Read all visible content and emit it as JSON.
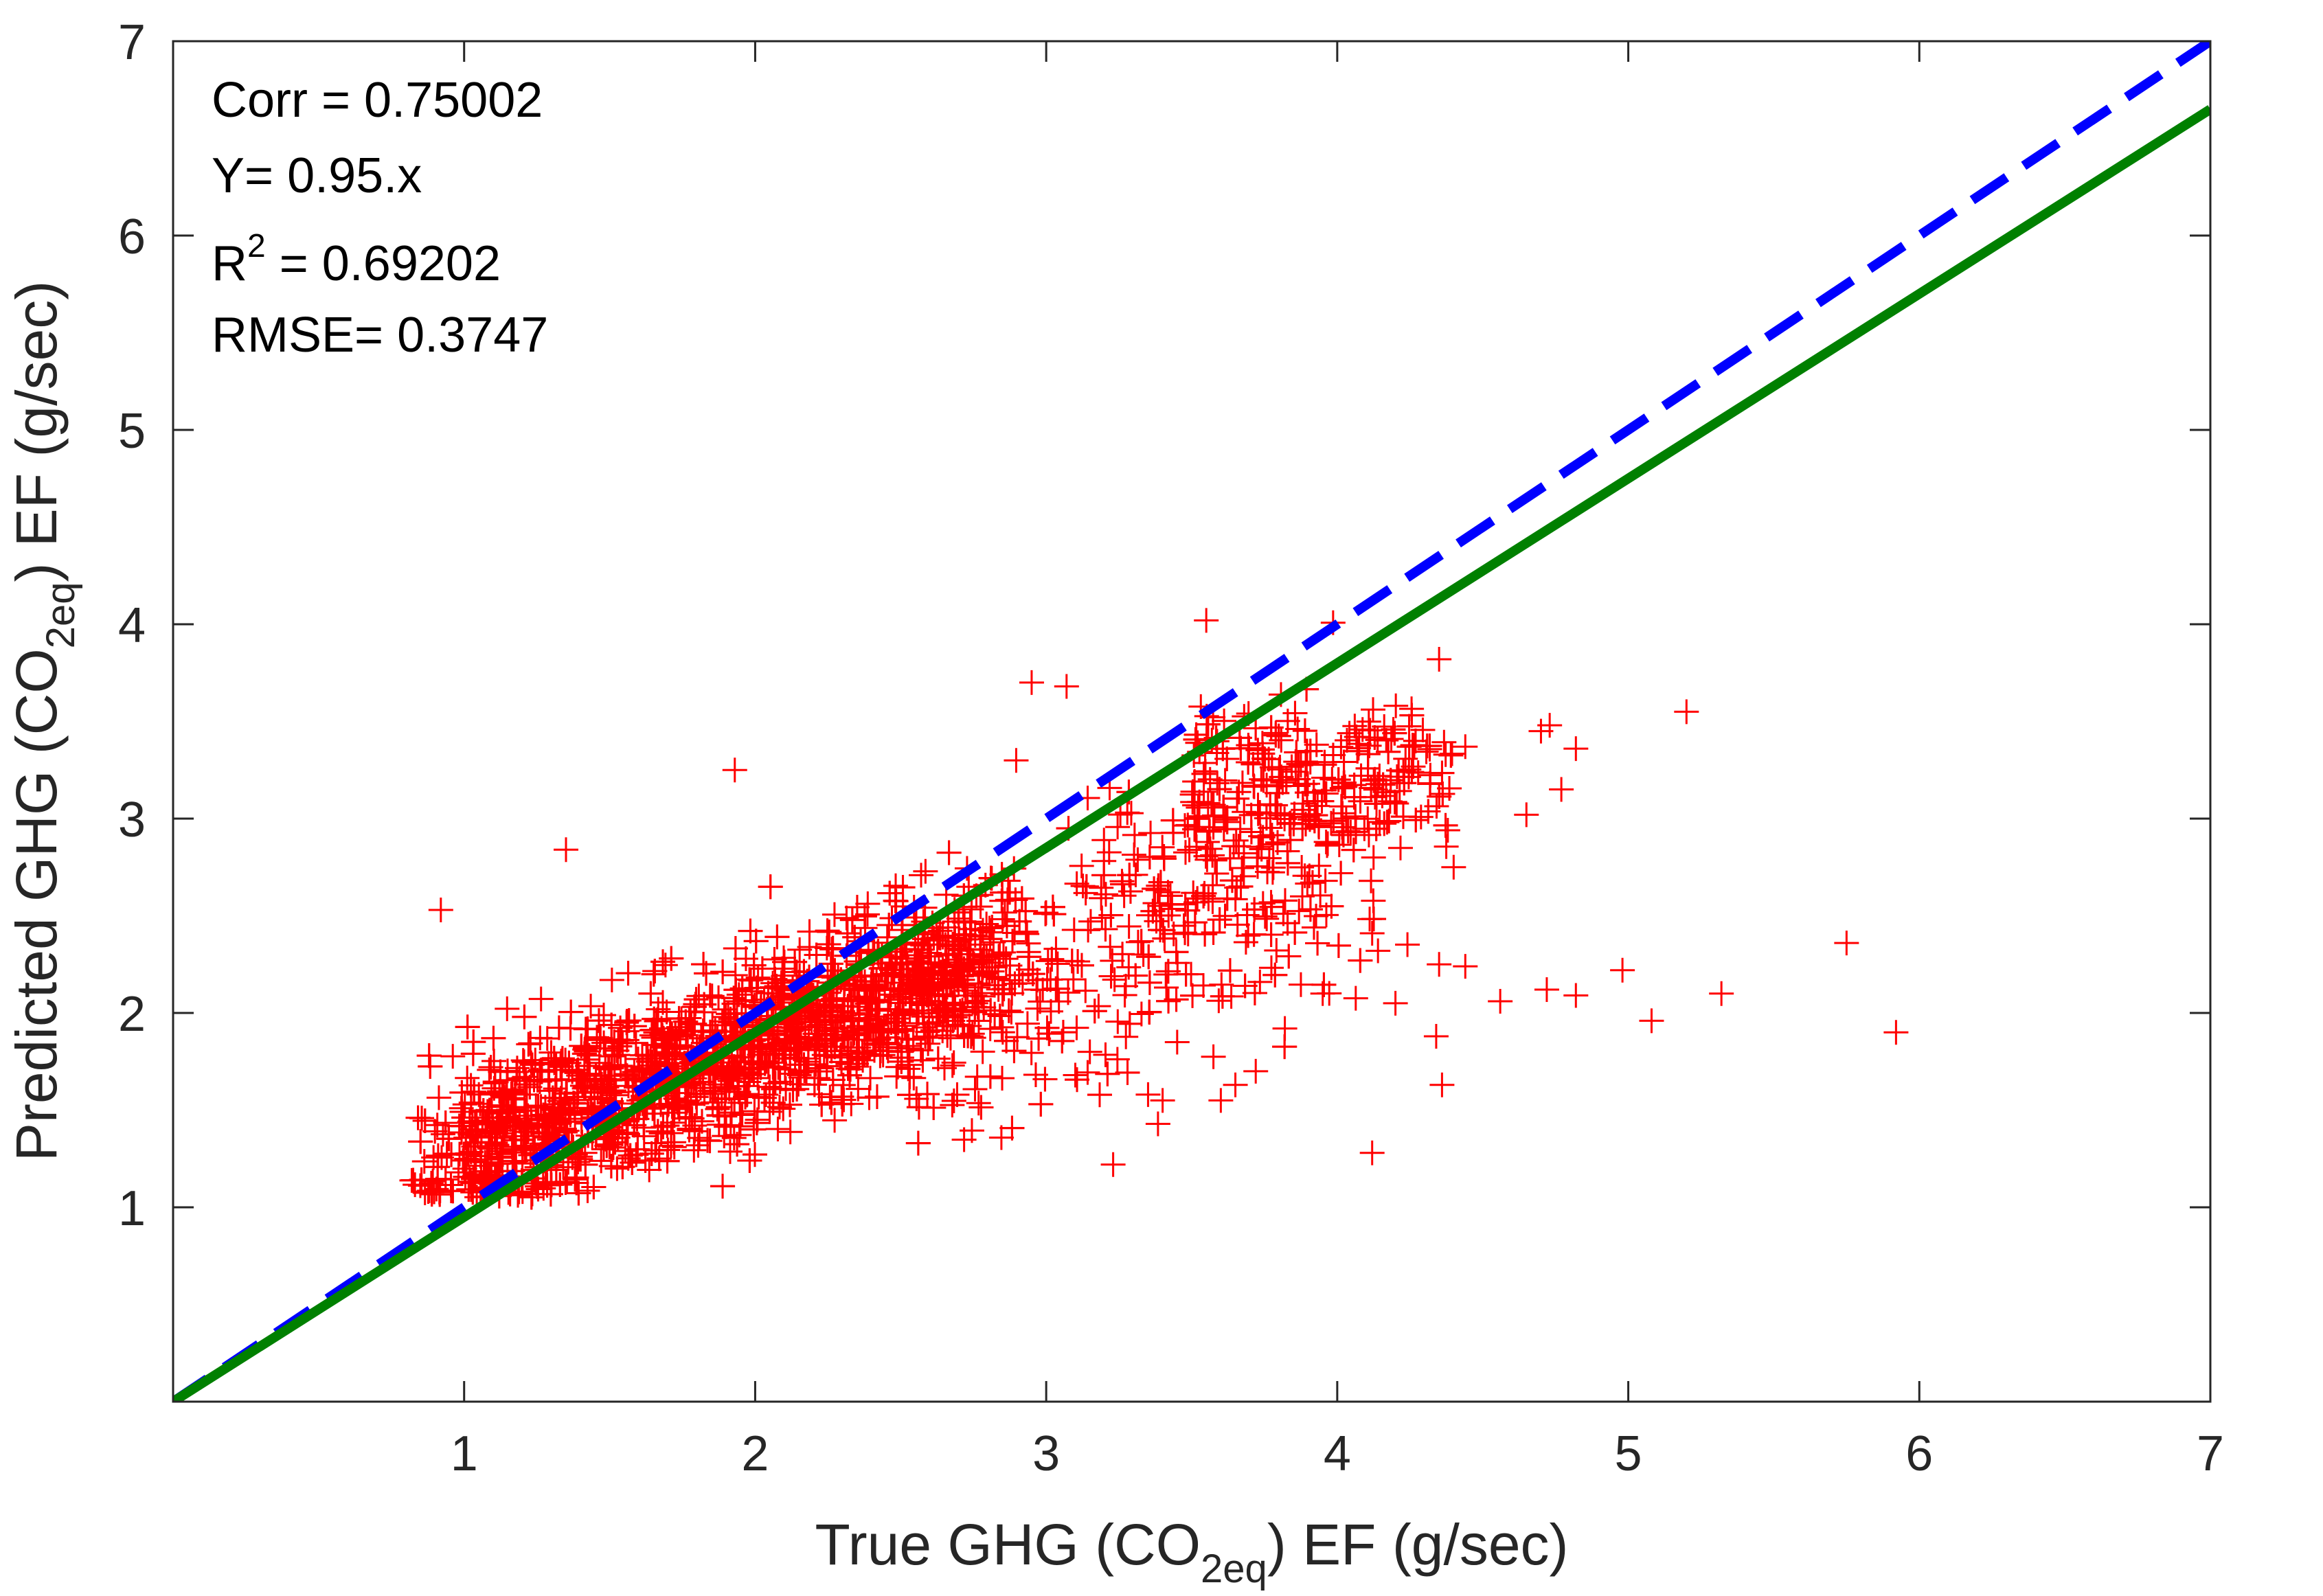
{
  "chart_data": {
    "type": "scatter",
    "xlim": [
      0,
      7
    ],
    "ylim": [
      0,
      7
    ],
    "x_ticks": [
      1,
      2,
      3,
      4,
      5,
      6,
      7
    ],
    "y_ticks": [
      1,
      2,
      3,
      4,
      5,
      6,
      7
    ],
    "xlabel": {
      "before": "True GHG (CO",
      "sub": "2eq",
      "after": ") EF (g/sec)"
    },
    "ylabel": {
      "before": "Predicted GHG (CO",
      "sub": "2eq",
      "after": ") EF (g/sec)"
    },
    "annotations": {
      "corr": "Corr = 0.75002",
      "fit": "Y= 0.95.x",
      "r2_prefix": "R",
      "r2_sup": "2",
      "r2_value": " = 0.69202",
      "rmse": "RMSE= 0.3747"
    },
    "grid": false,
    "box": true,
    "series": [
      {
        "kind": "points",
        "marker": "+",
        "color": "#ff0000",
        "approx_count": 3400,
        "core_trend_slope": 0.95,
        "core_x_range": [
          0.8,
          3.0
        ],
        "outliers": [
          {
            "x": 0.92,
            "y": 2.53
          },
          {
            "x": 1.35,
            "y": 2.84
          },
          {
            "x": 1.93,
            "y": 3.25
          },
          {
            "x": 2.95,
            "y": 3.7
          },
          {
            "x": 3.07,
            "y": 3.68
          },
          {
            "x": 3.55,
            "y": 4.02
          },
          {
            "x": 4.35,
            "y": 3.82
          },
          {
            "x": 5.2,
            "y": 3.55
          },
          {
            "x": 5.75,
            "y": 2.36
          },
          {
            "x": 5.92,
            "y": 1.9
          },
          {
            "x": 5.32,
            "y": 2.1
          },
          {
            "x": 5.08,
            "y": 1.96
          },
          {
            "x": 4.98,
            "y": 2.22
          },
          {
            "x": 4.82,
            "y": 2.09
          },
          {
            "x": 4.72,
            "y": 2.12
          },
          {
            "x": 4.56,
            "y": 2.06
          },
          {
            "x": 4.12,
            "y": 1.28
          },
          {
            "x": 4.36,
            "y": 1.63
          },
          {
            "x": 3.23,
            "y": 1.22
          },
          {
            "x": 4.44,
            "y": 2.24
          },
          {
            "x": 4.35,
            "y": 2.25
          },
          {
            "x": 4.34,
            "y": 1.88
          },
          {
            "x": 4.65,
            "y": 3.02
          },
          {
            "x": 4.7,
            "y": 3.45
          },
          {
            "x": 4.73,
            "y": 3.48
          },
          {
            "x": 4.82,
            "y": 3.36
          },
          {
            "x": 4.77,
            "y": 3.15
          },
          {
            "x": 4.44,
            "y": 3.37
          },
          {
            "x": 4.38,
            "y": 2.94
          },
          {
            "x": 4.4,
            "y": 2.75
          },
          {
            "x": 4.12,
            "y": 2.41
          },
          {
            "x": 4.14,
            "y": 2.32
          },
          {
            "x": 3.92,
            "y": 2.44
          },
          {
            "x": 3.65,
            "y": 1.63
          },
          {
            "x": 3.72,
            "y": 1.7
          },
          {
            "x": 3.6,
            "y": 1.55
          },
          {
            "x": 3.4,
            "y": 1.55
          },
          {
            "x": 3.35,
            "y": 1.58
          },
          {
            "x": 3.1,
            "y": 1.68
          },
          {
            "x": 3.82,
            "y": 1.92
          },
          {
            "x": 3.95,
            "y": 2.1
          },
          {
            "x": 4.2,
            "y": 2.05
          },
          {
            "x": 3.15,
            "y": 1.8
          },
          {
            "x": 3.45,
            "y": 1.85
          },
          {
            "x": 3.88,
            "y": 2.6
          }
        ]
      },
      {
        "kind": "line",
        "style": "dashed",
        "color": "#0000ff",
        "slope": 1.0,
        "x": [
          0,
          7
        ]
      },
      {
        "kind": "line",
        "style": "solid",
        "color": "#008000",
        "slope": 0.95,
        "x": [
          0,
          7
        ]
      }
    ]
  }
}
